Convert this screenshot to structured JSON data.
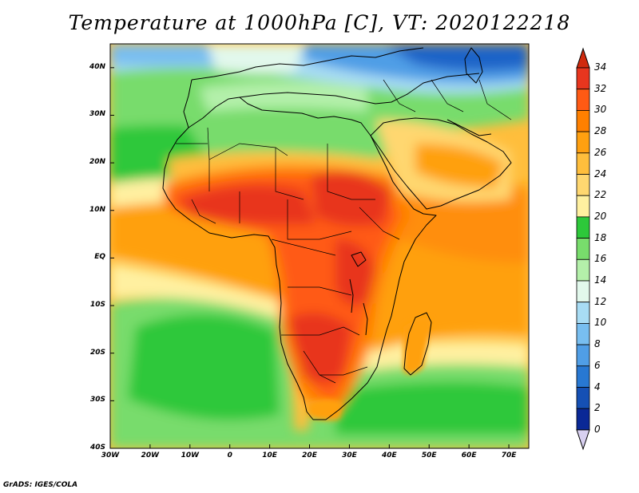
{
  "title": "Temperature at 1000hPa [C], VT: 2020122218",
  "credit": "GrADS: IGES/COLA",
  "lat_ticks": [
    {
      "label": "40N",
      "value": 40
    },
    {
      "label": "30N",
      "value": 30
    },
    {
      "label": "20N",
      "value": 20
    },
    {
      "label": "10N",
      "value": 10
    },
    {
      "label": "EQ",
      "value": 0
    },
    {
      "label": "10S",
      "value": -10
    },
    {
      "label": "20S",
      "value": -20
    },
    {
      "label": "30S",
      "value": -30
    },
    {
      "label": "40S",
      "value": -40
    }
  ],
  "lon_ticks": [
    {
      "label": "30W",
      "value": -30
    },
    {
      "label": "20W",
      "value": -20
    },
    {
      "label": "10W",
      "value": -10
    },
    {
      "label": "0",
      "value": 0
    },
    {
      "label": "10E",
      "value": 10
    },
    {
      "label": "20E",
      "value": 20
    },
    {
      "label": "30E",
      "value": 30
    },
    {
      "label": "40E",
      "value": 40
    },
    {
      "label": "50E",
      "value": 50
    },
    {
      "label": "60E",
      "value": 60
    },
    {
      "label": "70E",
      "value": 70
    }
  ],
  "map_extent": {
    "lon_min": -30,
    "lon_max": 75,
    "lat_min": -40,
    "lat_max": 45
  },
  "colorbar": {
    "unit": "C",
    "labels": [
      "34",
      "32",
      "30",
      "28",
      "26",
      "24",
      "22",
      "20",
      "18",
      "16",
      "14",
      "12",
      "10",
      "8",
      "6",
      "4",
      "2",
      "0"
    ],
    "colors_top_to_bottom": [
      "#e8361e",
      "#ff5a14",
      "#ff8000",
      "#ffa010",
      "#ffbe3c",
      "#ffd770",
      "#fff0a0",
      "#2dc83a",
      "#78dc6c",
      "#b4f0aa",
      "#e2f8ec",
      "#a8dcf4",
      "#78bef0",
      "#509ee6",
      "#2878d2",
      "#1550b4",
      "#0a2896",
      "#000a6e"
    ],
    "over_color": "#d02a0e",
    "under_color": "#d8d0f0"
  },
  "palette": {
    "ocean_south_green": "#2dc83a",
    "land_hot": "#e8361e",
    "north_cold": "#1e64c8",
    "border_color": "#000000"
  }
}
